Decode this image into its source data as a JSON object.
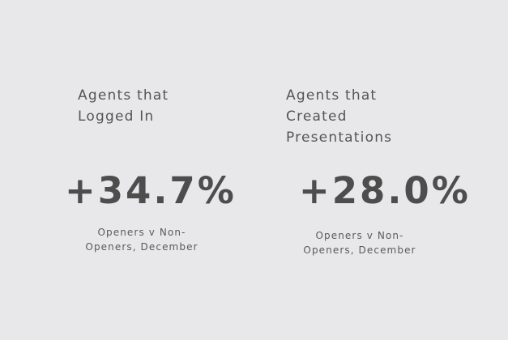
{
  "stats": [
    {
      "heading_lines": [
        "Agents that",
        "Logged In"
      ],
      "value": "+34.7%",
      "caption_lines": [
        "Openers v Non-",
        "Openers, December"
      ]
    },
    {
      "heading_lines": [
        "Agents that",
        "Created",
        "Presentations"
      ],
      "value": "+28.0%",
      "caption_lines": [
        "Openers v Non-",
        "Openers, December"
      ]
    }
  ],
  "colors": {
    "background": "#e8e7ea",
    "text": "#4d4d4d"
  }
}
